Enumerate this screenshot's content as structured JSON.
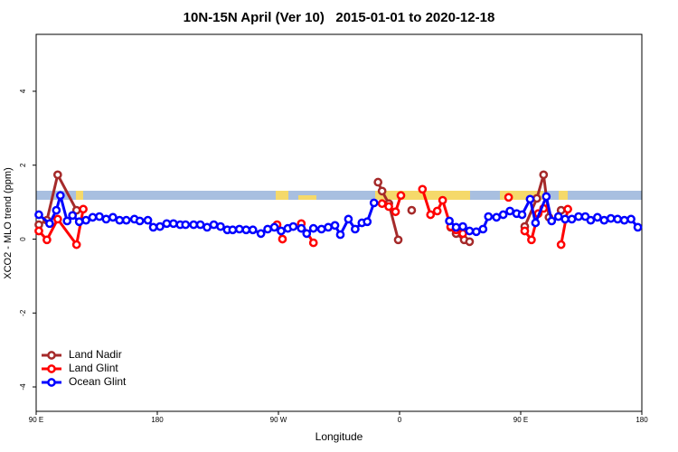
{
  "chart_data": {
    "type": "line",
    "title": "10N-15N April (Ver 10)   2015-01-01 to 2020-12-18",
    "xlabel": "Longitude",
    "ylabel": "XCO2 - MLO trend (ppm)",
    "xlim": [
      90,
      540
    ],
    "ylim": [
      -4.66,
      5.54
    ],
    "xticks": [
      {
        "value": 90,
        "label": "90 E"
      },
      180,
      {
        "value": 270,
        "label": "90 W"
      },
      {
        "value": 360,
        "label": "0"
      },
      {
        "value": 450,
        "label": "90 E"
      },
      {
        "value": 540,
        "label": "180"
      }
    ],
    "yticks": [
      -4,
      -2,
      0,
      2,
      4
    ],
    "legend": "bottomleft",
    "series": [
      {
        "name": "Land Nadir",
        "color": "#a52a2a",
        "x": [
          92,
          98,
          106,
          120,
          130,
          344,
          347,
          352,
          359,
          364,
          369,
          382,
          398,
          402,
          408,
          412,
          433,
          453,
          462,
          467,
          471,
          475,
          480
        ],
        "values": [
          0.39,
          0.51,
          1.74,
          0.78,
          null,
          1.54,
          1.3,
          0.96,
          -0.02,
          null,
          0.78,
          null,
          0.32,
          0.15,
          -0.02,
          -0.07,
          null,
          0.34,
          1.1,
          1.74,
          0.59,
          null,
          0.78
        ]
      },
      {
        "name": "Land Glint",
        "color": "#ff0000",
        "x": [
          92,
          98,
          106,
          120,
          125,
          130,
          269,
          273,
          278,
          287,
          296,
          318,
          347,
          352,
          357,
          361,
          369,
          377,
          383,
          388,
          392,
          398,
          402,
          407,
          426,
          441,
          446,
          453,
          458,
          463,
          467,
          474,
          480,
          485
        ],
        "values": [
          0.22,
          -0.02,
          0.54,
          -0.15,
          0.81,
          null,
          0.39,
          0,
          null,
          0.42,
          -0.1,
          null,
          0.96,
          0.88,
          0.74,
          1.18,
          null,
          1.35,
          0.66,
          0.76,
          1.05,
          0.34,
          0.25,
          0.15,
          null,
          1.13,
          null,
          0.22,
          -0.02,
          0.69,
          0.83,
          null,
          -0.15,
          0.81
        ]
      },
      {
        "name": "Ocean Glint",
        "color": "#0000ff",
        "x": [
          92,
          100,
          105,
          108,
          113,
          117,
          122,
          127,
          132,
          137,
          142,
          147,
          152,
          157,
          163,
          167,
          173,
          177,
          182,
          187,
          192,
          197,
          201,
          207,
          212,
          217,
          222,
          227,
          232,
          236,
          241,
          246,
          251,
          257,
          262,
          267,
          272,
          277,
          281,
          287,
          291,
          296,
          302,
          307,
          312,
          316,
          322,
          327,
          332,
          336,
          341,
          352,
          397,
          402,
          407,
          412,
          417,
          422,
          426,
          432,
          437,
          442,
          447,
          451,
          457,
          461,
          469,
          473,
          478,
          483,
          488,
          493,
          498,
          502,
          507,
          512,
          517,
          522,
          527,
          532,
          537
        ],
        "values": [
          0.66,
          0.42,
          0.78,
          1.18,
          0.49,
          0.64,
          0.47,
          0.51,
          0.59,
          0.61,
          0.54,
          0.59,
          0.51,
          0.51,
          0.54,
          0.49,
          0.51,
          0.32,
          0.34,
          0.42,
          0.42,
          0.39,
          0.39,
          0.39,
          0.39,
          0.32,
          0.39,
          0.34,
          0.25,
          0.25,
          0.27,
          0.25,
          0.25,
          0.15,
          0.27,
          0.32,
          0.22,
          0.29,
          0.34,
          0.29,
          0.15,
          0.29,
          0.27,
          0.32,
          0.37,
          0.12,
          0.54,
          0.27,
          0.44,
          0.47,
          0.98,
          null,
          0.49,
          0.32,
          0.34,
          0.22,
          0.2,
          0.27,
          0.61,
          0.59,
          0.66,
          0.76,
          0.69,
          0.66,
          1.08,
          0.44,
          1.15,
          0.49,
          0.61,
          0.54,
          0.54,
          0.61,
          0.61,
          0.51,
          0.59,
          0.51,
          0.56,
          0.54,
          0.51,
          0.54,
          0.32
        ]
      }
    ]
  }
}
